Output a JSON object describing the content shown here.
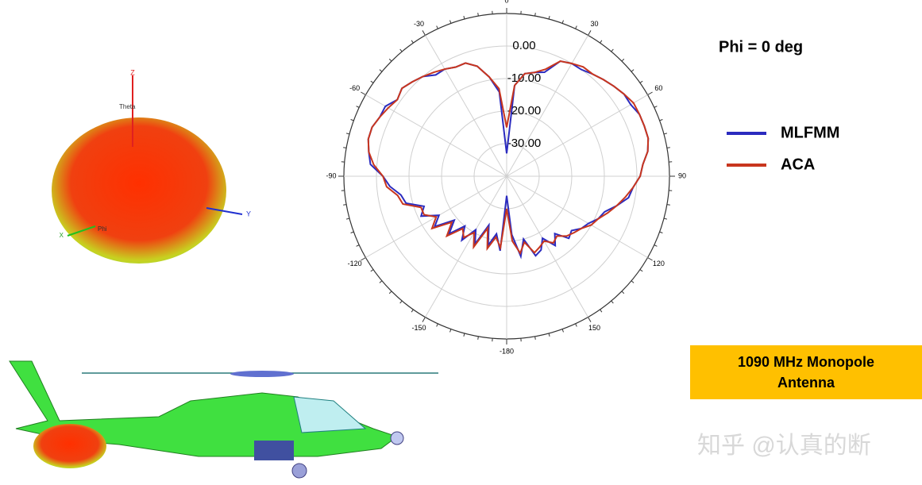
{
  "chart_data": {
    "type": "polar",
    "x": [
      -180,
      -175,
      -170,
      -165,
      -160,
      -155,
      -150,
      -145,
      -140,
      -135,
      -130,
      -125,
      -120,
      -115,
      -110,
      -105,
      -100,
      -95,
      -90,
      -85,
      -80,
      -75,
      -70,
      -65,
      -60,
      -55,
      -50,
      -45,
      -40,
      -35,
      -30,
      -25,
      -20,
      -15,
      -10,
      -5,
      0,
      5,
      10,
      15,
      20,
      25,
      30,
      35,
      40,
      45,
      50,
      55,
      60,
      65,
      70,
      75,
      80,
      85,
      90,
      95,
      100,
      105,
      110,
      115,
      120,
      125,
      130,
      135,
      140,
      145,
      150,
      155,
      160,
      165,
      170,
      175
    ],
    "series": [
      {
        "name": "MLFMM",
        "color": "#2b2bbf",
        "values": [
          -34,
          -17,
          -22,
          -18,
          -24,
          -17,
          -21,
          -16,
          -20,
          -15,
          -19,
          -13,
          -16,
          -11,
          -13,
          -8,
          -7,
          -4,
          -2,
          2,
          3,
          4,
          4,
          3,
          3,
          1,
          2,
          1,
          0,
          -2,
          -2,
          -3,
          -3,
          -5,
          -9,
          -14,
          -33,
          -12,
          -8,
          -7,
          -6,
          -1,
          0,
          0,
          1,
          2,
          3,
          4,
          4,
          5,
          5,
          5,
          4,
          2,
          1,
          -1,
          -2,
          -5,
          -8,
          -9,
          -11,
          -12,
          -14,
          -13,
          -17,
          -14,
          -18,
          -15,
          -14,
          -20,
          -15,
          -22
        ]
      },
      {
        "name": "ACA",
        "color": "#c8361e",
        "values": [
          -30,
          -18,
          -21,
          -17,
          -23,
          -16,
          -20,
          -17,
          -19,
          -14,
          -18,
          -12,
          -15,
          -12,
          -12,
          -7,
          -6,
          -3,
          -2,
          1,
          3,
          4,
          4,
          3,
          2,
          1,
          2,
          1,
          0,
          -1,
          -2,
          -3,
          -3,
          -5,
          -9,
          -13,
          -25,
          -12,
          -8,
          -7,
          -5,
          -1,
          0,
          1,
          1,
          2,
          3,
          4,
          5,
          5,
          5,
          5,
          4,
          2,
          1,
          -1,
          -3,
          -5,
          -7,
          -9,
          -10,
          -12,
          -13,
          -14,
          -16,
          -15,
          -17,
          -16,
          -15,
          -19,
          -16,
          -20
        ]
      }
    ],
    "rlim": [
      -40,
      10
    ],
    "rticks": [
      {
        "value": -30,
        "label": "-30.00"
      },
      {
        "value": -20,
        "label": "-20.00"
      },
      {
        "value": -10,
        "label": "-10.00"
      },
      {
        "value": 0,
        "label": "0.00"
      }
    ],
    "thetaticks": [
      0,
      30,
      60,
      90,
      120,
      150,
      -180,
      -150,
      -120,
      -90,
      -60,
      -30
    ],
    "grid": true
  },
  "phi_label": "Phi = 0 deg",
  "box_label": "1090 MHz Monopole Antenna",
  "pattern_3d": {
    "z": "Z",
    "theta": "Theta",
    "y": "Y",
    "phi": "Phi",
    "x": "X"
  },
  "watermark": "知乎 @认真的断"
}
